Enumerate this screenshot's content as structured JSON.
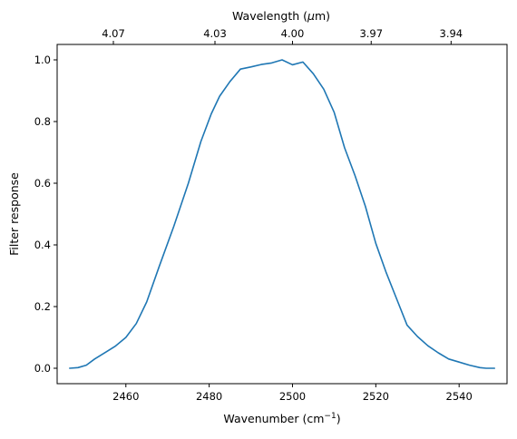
{
  "chart_data": {
    "type": "line",
    "title": "",
    "xlabel": "Wavenumber (cm",
    "xlabel_sup": "−1",
    "xlabel_close": ")",
    "ylabel": "Filter response",
    "top_xlabel": "Wavelength (",
    "top_xlabel_mu": "μ",
    "top_xlabel_tail": "m)",
    "xlim": [
      2443.5,
      2551.5
    ],
    "ylim": [
      -0.05,
      1.05
    ],
    "xticks": [
      {
        "value": 2460,
        "label": "2460"
      },
      {
        "value": 2480,
        "label": "2480"
      },
      {
        "value": 2500,
        "label": "2500"
      },
      {
        "value": 2520,
        "label": "2520"
      },
      {
        "value": 2540,
        "label": "2540"
      }
    ],
    "yticks": [
      {
        "value": 0.0,
        "label": "0.0"
      },
      {
        "value": 0.2,
        "label": "0.2"
      },
      {
        "value": 0.4,
        "label": "0.4"
      },
      {
        "value": 0.6,
        "label": "0.6"
      },
      {
        "value": 0.8,
        "label": "0.8"
      },
      {
        "value": 1.0,
        "label": "1.0"
      }
    ],
    "top_ticks": [
      {
        "wavelength_um": 4.07,
        "label": "4.07"
      },
      {
        "wavelength_um": 4.03,
        "label": "4.03"
      },
      {
        "wavelength_um": 4.0,
        "label": "4.00"
      },
      {
        "wavelength_um": 3.97,
        "label": "3.97"
      },
      {
        "wavelength_um": 3.94,
        "label": "3.94"
      }
    ],
    "grid": false,
    "series": [
      {
        "color": "#1f77b4",
        "x": [
          2446.5,
          2448.5,
          2450.5,
          2452.5,
          2455.5,
          2457.5,
          2460.0,
          2462.5,
          2465.0,
          2468.0,
          2471.5,
          2475.0,
          2478.0,
          2480.5,
          2482.5,
          2485.0,
          2487.5,
          2490.0,
          2492.5,
          2495.0,
          2497.5,
          2500.0,
          2502.5,
          2505.0,
          2507.5,
          2510.0,
          2512.5,
          2515.0,
          2517.5,
          2520.0,
          2522.5,
          2525.0,
          2527.5,
          2530.0,
          2532.5,
          2535.0,
          2537.5,
          2540.0,
          2542.5,
          2545.0,
          2546.5,
          2548.5
        ],
        "y": [
          0.0,
          0.002,
          0.01,
          0.03,
          0.055,
          0.072,
          0.1,
          0.145,
          0.215,
          0.33,
          0.46,
          0.6,
          0.735,
          0.825,
          0.882,
          0.93,
          0.97,
          0.977,
          0.985,
          0.99,
          1.0,
          0.984,
          0.993,
          0.955,
          0.905,
          0.83,
          0.715,
          0.625,
          0.525,
          0.405,
          0.31,
          0.225,
          0.14,
          0.103,
          0.073,
          0.05,
          0.03,
          0.02,
          0.01,
          0.002,
          0.0,
          0.0
        ]
      }
    ]
  }
}
